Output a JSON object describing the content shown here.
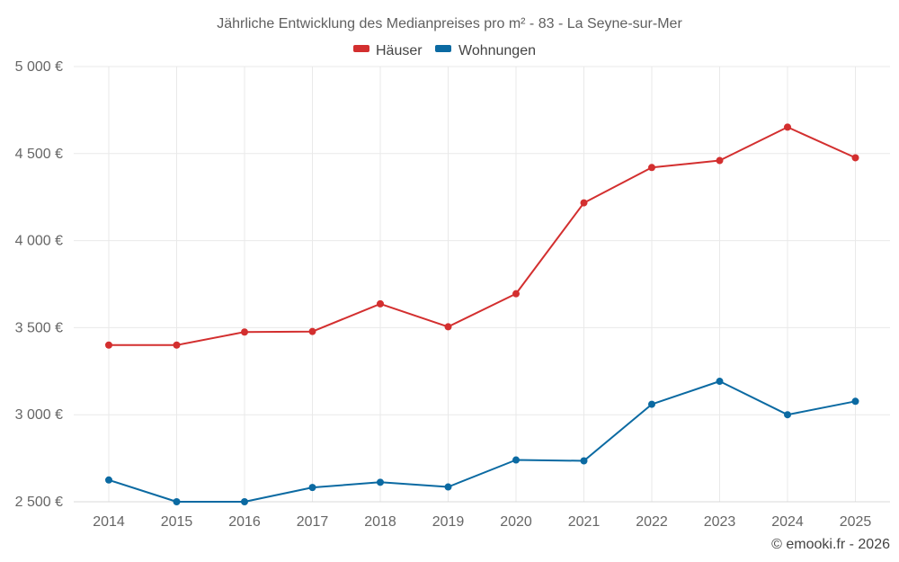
{
  "chart_data": {
    "type": "line",
    "title": "Jährliche Entwicklung des Medianpreises pro m² - 83 - La Seyne-sur-Mer",
    "xlabel": "",
    "ylabel": "",
    "categories": [
      "2014",
      "2015",
      "2016",
      "2017",
      "2018",
      "2019",
      "2020",
      "2021",
      "2022",
      "2023",
      "2024",
      "2025"
    ],
    "ylim": [
      2500,
      5000
    ],
    "yticks": [
      2500,
      3000,
      3500,
      4000,
      4500,
      5000
    ],
    "ytick_labels": [
      "2 500 €",
      "3 000 €",
      "3 500 €",
      "4 000 €",
      "4 500 €",
      "5 000 €"
    ],
    "grid": true,
    "legend_position": "top-center",
    "series": [
      {
        "name": "Häuser",
        "color": "#d32f2f",
        "values": [
          3400,
          3400,
          3475,
          3478,
          3637,
          3505,
          3695,
          4217,
          4420,
          4460,
          4652,
          4476
        ]
      },
      {
        "name": "Wohnungen",
        "color": "#0b6aa2",
        "values": [
          2625,
          2500,
          2500,
          2582,
          2612,
          2585,
          2740,
          2735,
          3060,
          3192,
          3000,
          3077
        ]
      }
    ],
    "credit": "© emooki.fr - 2026"
  }
}
